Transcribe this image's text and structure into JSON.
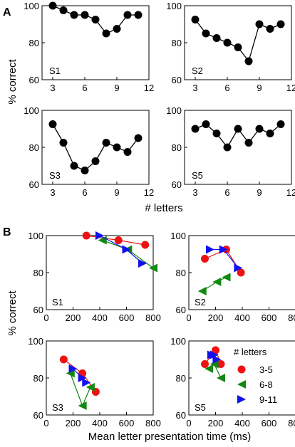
{
  "panels": {
    "A": "A",
    "B": "B"
  },
  "colors": {
    "c35": "#ee1111",
    "c68": "#118811",
    "c911": "#1111ee"
  },
  "chart_data": [
    {
      "type": "line",
      "panel": "A",
      "xlabel": "# letters",
      "ylabel": "% correct",
      "xlim": [
        2,
        12
      ],
      "ylim": [
        60,
        100
      ],
      "xticks": [
        "3",
        "6",
        "9",
        "12"
      ],
      "yticks": [
        "60",
        "80",
        "100"
      ],
      "subplots": [
        {
          "label": "S1",
          "x": [
            3,
            4,
            5,
            6,
            7,
            8,
            9,
            10,
            11
          ],
          "y": [
            100,
            97.5,
            95,
            95,
            92.5,
            85,
            87.5,
            95,
            95
          ]
        },
        {
          "label": "S2",
          "x": [
            3,
            4,
            5,
            6,
            7,
            8,
            9,
            10,
            11
          ],
          "y": [
            92.5,
            85,
            82.5,
            80,
            77.5,
            70,
            90,
            87.5,
            90
          ]
        },
        {
          "label": "S3",
          "x": [
            3,
            4,
            5,
            6,
            7,
            8,
            9,
            10,
            11
          ],
          "y": [
            92.5,
            82.5,
            70,
            67.5,
            72.5,
            82.5,
            80,
            77.5,
            85
          ]
        },
        {
          "label": "S5",
          "x": [
            3,
            4,
            5,
            6,
            7,
            8,
            9,
            10,
            11
          ],
          "y": [
            90,
            92.5,
            87.5,
            80,
            90,
            82.5,
            90,
            87.5,
            92.5
          ]
        }
      ]
    },
    {
      "type": "scatter",
      "panel": "B",
      "xlabel": "Mean letter presentation time (ms)",
      "ylabel": "% correct",
      "xlim": [
        0,
        800
      ],
      "ylim": [
        60,
        100
      ],
      "xticks": [
        "0",
        "200",
        "400",
        "600",
        "800"
      ],
      "yticks": [
        "60",
        "80",
        "100"
      ],
      "legend_title": "# letters",
      "legend": [
        "3-5",
        "6-8",
        "9-11"
      ],
      "subplots": [
        {
          "label": "S1",
          "series": [
            {
              "name": "3-5",
              "x": [
                300,
                540,
                740
              ],
              "y": [
                100,
                97.5,
                95
              ]
            },
            {
              "name": "6-8",
              "x": [
                420,
                610,
                800
              ],
              "y": [
                97.5,
                92.5,
                82.5
              ]
            },
            {
              "name": "9-11",
              "x": [
                400,
                600,
                720
              ],
              "y": [
                100,
                92.5,
                85
              ]
            }
          ]
        },
        {
          "label": "S2",
          "series": [
            {
              "name": "3-5",
              "x": [
                120,
                280,
                390
              ],
              "y": [
                87.5,
                92.5,
                80
              ]
            },
            {
              "name": "6-8",
              "x": [
                100,
                210,
                280
              ],
              "y": [
                70,
                75,
                77.5
              ]
            },
            {
              "name": "9-11",
              "x": [
                160,
                260,
                370
              ],
              "y": [
                92.5,
                92.5,
                82.5
              ]
            }
          ]
        },
        {
          "label": "S3",
          "series": [
            {
              "name": "3-5",
              "x": [
                130,
                270,
                370
              ],
              "y": [
                90,
                82.5,
                72.5
              ]
            },
            {
              "name": "6-8",
              "x": [
                180,
                270,
                330
              ],
              "y": [
                82.5,
                65,
                75
              ]
            },
            {
              "name": "9-11",
              "x": [
                200,
                270,
                300
              ],
              "y": [
                85,
                80,
                77.5
              ]
            }
          ]
        },
        {
          "label": "S5",
          "series": [
            {
              "name": "3-5",
              "x": [
                120,
                200,
                240
              ],
              "y": [
                87.5,
                95,
                87.5
              ]
            },
            {
              "name": "6-8",
              "x": [
                150,
                190,
                240
              ],
              "y": [
                85,
                87.5,
                80
              ]
            },
            {
              "name": "9-11",
              "x": [
                170,
                190,
                210
              ],
              "y": [
                92.5,
                92.5,
                90
              ]
            }
          ]
        }
      ]
    }
  ]
}
